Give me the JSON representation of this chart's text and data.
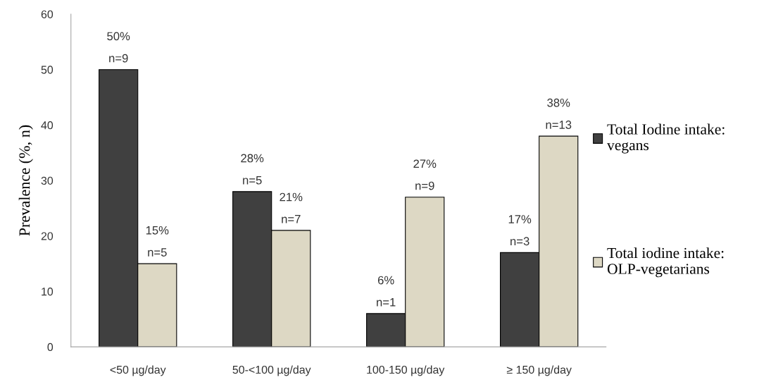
{
  "chart_data": {
    "type": "bar",
    "ylabel": "Prevalence (%, n)",
    "categories": [
      "<50 µg/day",
      "50-<100 µg/day",
      "100-150 µg/day",
      "≥ 150 µg/day"
    ],
    "series": [
      {
        "name": "Total Iodine intake:\nvegans",
        "color": "#404040",
        "values": [
          50,
          28,
          6,
          17
        ],
        "value_labels": [
          "50%\nn=9",
          "28%\nn=5",
          "6%\nn=1",
          "17%\nn=3"
        ]
      },
      {
        "name": "Total iodine intake:\nOLP-vegetarians",
        "color": "#ddd8c4",
        "values": [
          15,
          21,
          27,
          38
        ],
        "value_labels": [
          "15%\nn=5",
          "21%\nn=7",
          "27%\nn=9",
          "38%\nn=13"
        ]
      }
    ],
    "ylim": [
      0,
      60
    ],
    "yticks": [
      0,
      10,
      20,
      30,
      40,
      50,
      60
    ],
    "grid": false,
    "legend": "right"
  }
}
